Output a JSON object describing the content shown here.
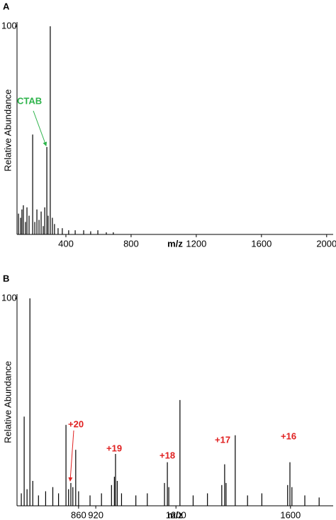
{
  "chart_data": [
    {
      "type": "spectrum",
      "label": "A",
      "ylabel": "Relative Abundance",
      "xlabel": "m/z",
      "color": "#000000",
      "annotation_color": "#2db34a",
      "annotations": [
        "CTAB"
      ],
      "xlim": [
        100,
        2040
      ],
      "ylim": [
        0,
        100
      ],
      "yticks": [
        100
      ],
      "xticks": [
        400,
        800,
        1200,
        1600,
        2000
      ],
      "x": [
        109,
        122,
        130,
        139,
        152,
        161,
        174,
        196,
        209,
        222,
        235,
        248,
        261,
        270,
        283,
        291,
        304,
        317,
        330,
        352,
        378,
        417,
        457,
        509,
        552,
        596,
        648,
        691
      ],
      "values": [
        10,
        8,
        12,
        14,
        6,
        13,
        9,
        48,
        6,
        12,
        7,
        11,
        4,
        13,
        42,
        9,
        100,
        8,
        5,
        3,
        3,
        2,
        2,
        2,
        1.5,
        2,
        1,
        1
      ]
    },
    {
      "type": "spectrum",
      "label": "B",
      "ylabel": "Relative Abundance",
      "xlabel": "m/z",
      "color": "#000000",
      "annotation_color": "#e02020",
      "annotations": [
        "+20",
        "+19",
        "+18",
        "+17",
        "+16"
      ],
      "xlim": [
        645,
        1749
      ],
      "ylim": [
        0,
        100
      ],
      "yticks": [
        100
      ],
      "xticks": [
        860,
        920,
        1200,
        1600
      ],
      "x": [
        660,
        670,
        680,
        690,
        700,
        720,
        745,
        770,
        790,
        816,
        825,
        833,
        840,
        850,
        860,
        900,
        940,
        975,
        985,
        989,
        995,
        1010,
        1060,
        1100,
        1160,
        1170,
        1175,
        1214,
        1260,
        1310,
        1360,
        1370,
        1375,
        1407,
        1450,
        1500,
        1590,
        1598,
        1605,
        1650,
        1700
      ],
      "values": [
        6,
        43,
        8,
        100,
        12,
        5,
        7,
        9,
        6,
        39,
        8,
        11,
        9,
        27,
        7,
        5,
        6,
        10,
        14,
        25,
        12,
        6,
        5,
        6,
        11,
        21,
        9,
        51,
        5,
        6,
        10,
        20,
        11,
        34,
        5,
        6,
        10,
        21,
        9,
        5,
        4
      ]
    }
  ]
}
